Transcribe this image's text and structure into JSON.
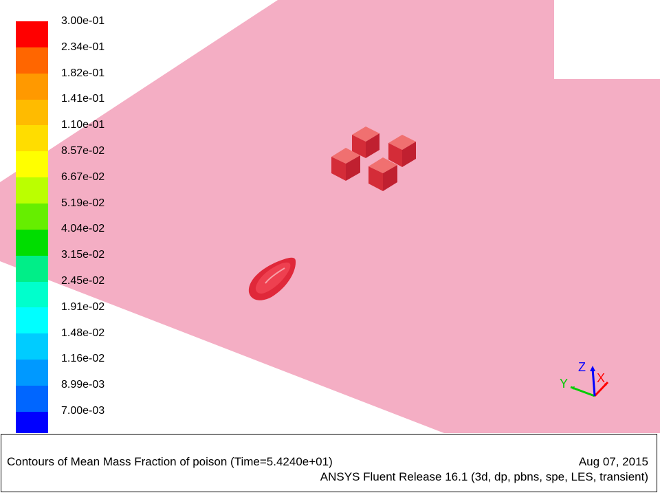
{
  "colorbar": {
    "labels": [
      "3.00e-01",
      "2.34e-01",
      "1.82e-01",
      "1.41e-01",
      "1.10e-01",
      "8.57e-02",
      "6.67e-02",
      "5.19e-02",
      "4.04e-02",
      "3.15e-02",
      "2.45e-02",
      "1.91e-02",
      "1.48e-02",
      "1.16e-02",
      "8.99e-03",
      "7.00e-03"
    ],
    "colors": [
      "#ff0000",
      "#ff6600",
      "#ff9900",
      "#ffbb00",
      "#ffdd00",
      "#ffff00",
      "#bbff00",
      "#66ee00",
      "#00dd00",
      "#00ee88",
      "#00ffcc",
      "#00ffff",
      "#00ccff",
      "#0099ff",
      "#0066ff",
      "#0000ff"
    ]
  },
  "scene": {
    "plane_color": "#f4aec4",
    "object_color": "#e8303c"
  },
  "axes": {
    "x_label": "X",
    "y_label": "Y",
    "z_label": "Z",
    "x_color": "#ff0000",
    "y_color": "#00cc00",
    "z_color": "#0000ff"
  },
  "caption": {
    "title": "Contours of Mean Mass Fraction of poison  (Time=5.4240e+01)",
    "date": "Aug 07, 2015",
    "release": "ANSYS Fluent Release 16.1 (3d, dp, pbns, spe, LES, transient)"
  }
}
